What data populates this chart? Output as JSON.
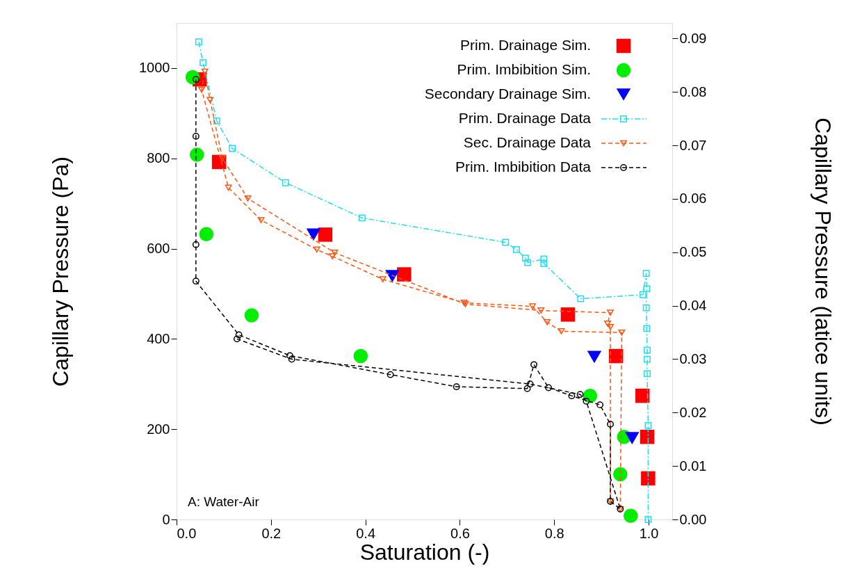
{
  "chart_data": {
    "type": "scatter",
    "xlabel": "Saturation (-)",
    "ylabel": "Capillary Pressure (Pa)",
    "y2label": "Capillary Pressure (latice units)",
    "xlim": [
      0,
      1.05
    ],
    "xticks": [
      {
        "value": 0,
        "label": "0.0"
      },
      0.2,
      0.4,
      0.6,
      0.8,
      {
        "value": 1,
        "label": "1.0"
      }
    ],
    "ylim": [
      0,
      1100
    ],
    "yticks": [
      0,
      200,
      400,
      600,
      800,
      1000
    ],
    "y2lim": [
      0,
      0.0929
    ],
    "y2ticks": [
      {
        "value": 0,
        "label": "0.00"
      },
      {
        "value": 0.01,
        "label": "0.01"
      },
      {
        "value": 0.02,
        "label": "0.02"
      },
      {
        "value": 0.03,
        "label": "0.03"
      },
      {
        "value": 0.04,
        "label": "0.04"
      },
      {
        "value": 0.05,
        "label": "0.05"
      },
      {
        "value": 0.06,
        "label": "0.06"
      },
      {
        "value": 0.07,
        "label": "0.07"
      },
      {
        "value": 0.08,
        "label": "0.08"
      },
      {
        "value": 0.09,
        "label": "0.09"
      }
    ],
    "grid": false,
    "legend": "top right",
    "annotations": [
      "A: Water-Air"
    ],
    "series": [
      {
        "name": "Prim. Drainage Sim.",
        "marker": "square",
        "color": "#ff0000",
        "x": [
          0.049,
          0.09,
          0.315,
          0.482,
          0.829,
          0.931,
          0.987,
          0.997,
          0.999
        ],
        "values": [
          975,
          792,
          631,
          543,
          454,
          362,
          274,
          183,
          91
        ]
      },
      {
        "name": "Prim. Imbibition Sim.",
        "marker": "circle",
        "color": "#00ee00",
        "x": [
          0.034,
          0.043,
          0.063,
          0.159,
          0.39,
          0.876,
          0.948,
          0.94,
          0.962
        ],
        "values": [
          980,
          808,
          632,
          452,
          362,
          274,
          183,
          100,
          8
        ]
      },
      {
        "name": "Secondary Drainage Sim.",
        "marker": "triangle",
        "color": "#0000ff",
        "x": [
          0.29,
          0.457,
          0.885,
          0.965
        ],
        "values": [
          631,
          539,
          360,
          180
        ]
      },
      {
        "name": "Prim. Drainage Data",
        "type": "line",
        "marker": "square",
        "line_style": "dashdot",
        "color": "#22ddee",
        "x": [
          0.047,
          0.056,
          0.085,
          0.118,
          0.231,
          0.393,
          0.697,
          0.72,
          0.739,
          0.744,
          0.778,
          0.778,
          0.856,
          0.988,
          0.995,
          0.996,
          0.995,
          0.996,
          0.997,
          0.997,
          0.997,
          0.999,
          0.999
        ],
        "values": [
          1058,
          1012,
          883,
          822,
          746,
          668,
          614,
          598,
          579,
          569,
          577,
          567,
          489,
          498,
          545,
          511,
          469,
          423,
          375,
          355,
          323,
          208,
          0
        ]
      },
      {
        "name": "Sec. Drainage Data",
        "type": "line",
        "marker": "triangle",
        "line_style": "dashed",
        "color": "#ff5511",
        "x": [
          0.919,
          0.919,
          0.913,
          0.919,
          0.772,
          0.612,
          0.335,
          0.151,
          0.097,
          0.071,
          0.06,
          0.053,
          0.11,
          0.179,
          0.297,
          0.33,
          0.437,
          0.609,
          0.754,
          0.785,
          0.815,
          0.943,
          0.94
        ],
        "values": [
          40,
          426,
          434,
          458,
          463,
          477,
          591,
          711,
          800,
          929,
          992,
          952,
          735,
          663,
          598,
          583,
          532,
          480,
          472,
          437,
          417,
          414,
          23
        ]
      },
      {
        "name": "Prim. Imbibition Data",
        "type": "line",
        "marker": "circle",
        "line_style": "dashed",
        "color": "#000000",
        "x": [
          0.041,
          0.041,
          0.041,
          0.041,
          0.132,
          0.24,
          0.453,
          0.593,
          0.743,
          0.757,
          0.788,
          0.837,
          0.897,
          0.919,
          0.919,
          0.94,
          0.868,
          0.855,
          0.749,
          0.244,
          0.128
        ],
        "values": [
          975,
          849,
          609,
          528,
          409,
          363,
          321,
          294,
          290,
          343,
          292,
          274,
          254,
          211,
          40,
          23,
          262,
          277,
          300,
          355,
          400
        ]
      }
    ]
  }
}
